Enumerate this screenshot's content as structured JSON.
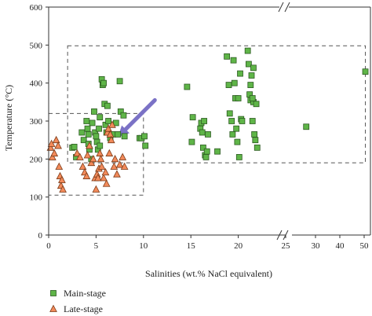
{
  "chart_data": {
    "type": "scatter",
    "xlabel": "Salinities (wt.% NaCl equivalent)",
    "ylabel": "Temperature (°C)",
    "ylim": [
      0,
      600
    ],
    "y_ticks": [
      "0",
      "100",
      "200",
      "300",
      "400",
      "500",
      "600"
    ],
    "x_axis_broken": true,
    "x_segments": [
      {
        "range": [
          0,
          25
        ],
        "ticks": [
          "0",
          "5",
          "10",
          "15",
          "20",
          "25"
        ]
      },
      {
        "range": [
          25,
          50
        ],
        "ticks": [
          "30",
          "40",
          "50"
        ]
      }
    ],
    "grid": false,
    "legend_position": "bottom-left",
    "series": [
      {
        "name": "Main-stage",
        "marker": "square",
        "color": "#5fb548",
        "points": [
          [
            2.5,
            230
          ],
          [
            2.7,
            232
          ],
          [
            2.9,
            205
          ],
          [
            3.5,
            270
          ],
          [
            3.7,
            250
          ],
          [
            4.0,
            300
          ],
          [
            4.1,
            280
          ],
          [
            4.2,
            265
          ],
          [
            4.2,
            240
          ],
          [
            4.3,
            225
          ],
          [
            4.5,
            200
          ],
          [
            4.6,
            295
          ],
          [
            4.8,
            325
          ],
          [
            4.9,
            270
          ],
          [
            5.0,
            260
          ],
          [
            5.1,
            245
          ],
          [
            5.2,
            225
          ],
          [
            5.3,
            280
          ],
          [
            5.4,
            310
          ],
          [
            5.4,
            235
          ],
          [
            5.6,
            410
          ],
          [
            5.7,
            395
          ],
          [
            5.8,
            400
          ],
          [
            5.9,
            345
          ],
          [
            6.0,
            290
          ],
          [
            6.1,
            270
          ],
          [
            6.2,
            340
          ],
          [
            6.3,
            300
          ],
          [
            6.5,
            255
          ],
          [
            6.8,
            265
          ],
          [
            7.1,
            295
          ],
          [
            7.3,
            265
          ],
          [
            7.5,
            405
          ],
          [
            7.6,
            325
          ],
          [
            7.9,
            315
          ],
          [
            8.0,
            260
          ],
          [
            9.6,
            255
          ],
          [
            9.8,
            255
          ],
          [
            10.1,
            260
          ],
          [
            10.2,
            235
          ],
          [
            14.6,
            390
          ],
          [
            15.1,
            245
          ],
          [
            15.2,
            310
          ],
          [
            16.0,
            280
          ],
          [
            16.1,
            295
          ],
          [
            16.2,
            270
          ],
          [
            16.3,
            230
          ],
          [
            16.4,
            300
          ],
          [
            16.5,
            210
          ],
          [
            16.6,
            205
          ],
          [
            16.7,
            220
          ],
          [
            16.8,
            265
          ],
          [
            17.8,
            220
          ],
          [
            18.8,
            470
          ],
          [
            19.0,
            395
          ],
          [
            19.1,
            320
          ],
          [
            19.3,
            300
          ],
          [
            19.4,
            265
          ],
          [
            19.5,
            460
          ],
          [
            19.6,
            400
          ],
          [
            19.7,
            360
          ],
          [
            19.8,
            280
          ],
          [
            19.9,
            245
          ],
          [
            20.0,
            360
          ],
          [
            20.1,
            205
          ],
          [
            20.2,
            425
          ],
          [
            20.3,
            305
          ],
          [
            20.4,
            300
          ],
          [
            21.0,
            485
          ],
          [
            21.1,
            450
          ],
          [
            21.2,
            370
          ],
          [
            21.3,
            355
          ],
          [
            21.4,
            420
          ],
          [
            21.5,
            300
          ],
          [
            21.6,
            350
          ],
          [
            21.7,
            265
          ],
          [
            21.8,
            250
          ],
          [
            21.9,
            345
          ],
          [
            22.0,
            230
          ],
          [
            21.6,
            440
          ],
          [
            21.3,
            395
          ],
          [
            21.5,
            360
          ],
          [
            26.2,
            285
          ],
          [
            50.5,
            430
          ]
        ]
      },
      {
        "name": "Late-stage",
        "marker": "triangle",
        "color": "#f28a5a",
        "points": [
          [
            0.2,
            230
          ],
          [
            0.3,
            240
          ],
          [
            0.4,
            205
          ],
          [
            0.6,
            215
          ],
          [
            0.8,
            250
          ],
          [
            1.0,
            235
          ],
          [
            1.1,
            180
          ],
          [
            1.2,
            155
          ],
          [
            1.3,
            130
          ],
          [
            1.4,
            145
          ],
          [
            1.5,
            120
          ],
          [
            3.0,
            215
          ],
          [
            3.3,
            205
          ],
          [
            3.6,
            180
          ],
          [
            3.8,
            165
          ],
          [
            4.0,
            155
          ],
          [
            4.1,
            210
          ],
          [
            4.3,
            235
          ],
          [
            4.5,
            190
          ],
          [
            4.7,
            200
          ],
          [
            4.9,
            150
          ],
          [
            5.0,
            120
          ],
          [
            5.1,
            160
          ],
          [
            5.2,
            150
          ],
          [
            5.3,
            175
          ],
          [
            5.4,
            215
          ],
          [
            5.5,
            200
          ],
          [
            5.6,
            180
          ],
          [
            5.8,
            150
          ],
          [
            6.0,
            165
          ],
          [
            6.1,
            135
          ],
          [
            6.2,
            270
          ],
          [
            6.3,
            280
          ],
          [
            6.4,
            215
          ],
          [
            6.5,
            265
          ],
          [
            6.6,
            250
          ],
          [
            6.7,
            290
          ],
          [
            6.9,
            180
          ],
          [
            7.0,
            200
          ],
          [
            7.2,
            160
          ],
          [
            7.5,
            185
          ],
          [
            7.8,
            205
          ],
          [
            8.0,
            180
          ]
        ]
      }
    ],
    "annotations": [
      {
        "type": "dashed-box",
        "x": [
          0,
          10
        ],
        "y": [
          105,
          320
        ]
      },
      {
        "type": "dashed-box",
        "x": [
          2,
          50.5
        ],
        "y": [
          190,
          498
        ]
      },
      {
        "type": "arrow",
        "from": [
          11.2,
          355
        ],
        "to": [
          7.3,
          258
        ],
        "color": "#7b72c6"
      }
    ]
  }
}
